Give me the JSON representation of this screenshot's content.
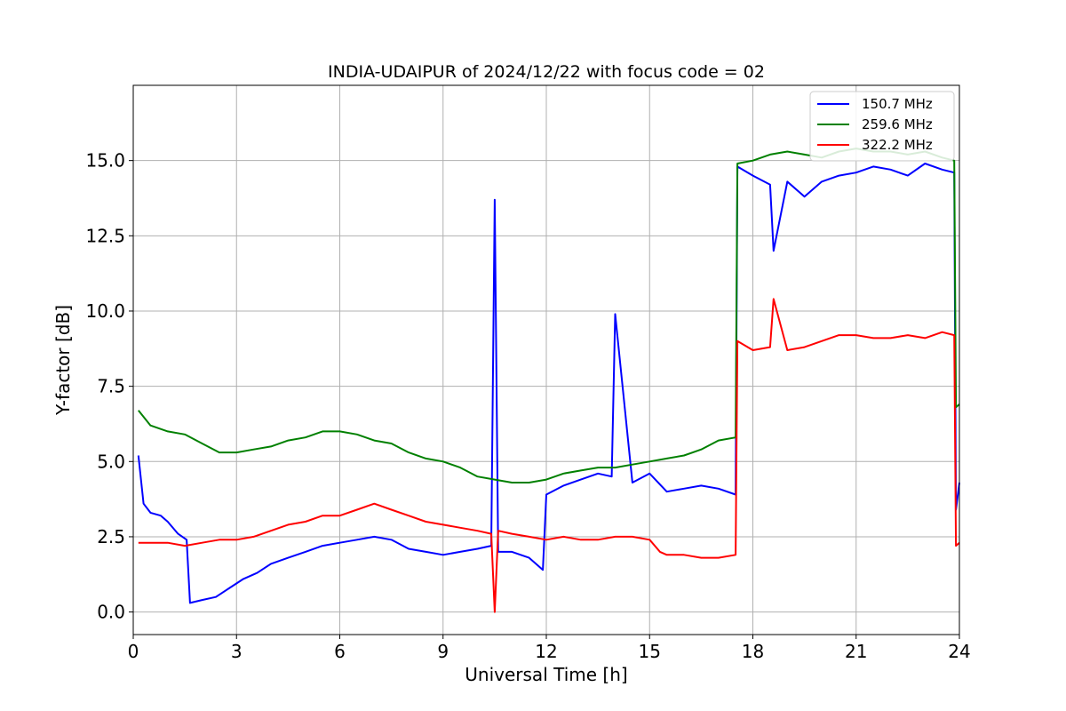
{
  "chart_data": {
    "type": "line",
    "title": "INDIA-UDAIPUR of 2024/12/22 with focus code = 02",
    "xlabel": "Universal Time [h]",
    "ylabel": "Y-factor [dB]",
    "xlim": [
      0,
      24
    ],
    "ylim": [
      -0.75,
      17.5
    ],
    "xticks": [
      0,
      3,
      6,
      9,
      12,
      15,
      18,
      21,
      24
    ],
    "xtick_labels": [
      "0",
      "3",
      "6",
      "9",
      "12",
      "15",
      "18",
      "21",
      "24"
    ],
    "yticks": [
      0.0,
      2.5,
      5.0,
      7.5,
      10.0,
      12.5,
      15.0
    ],
    "ytick_labels": [
      "0.0",
      "2.5",
      "5.0",
      "7.5",
      "10.0",
      "12.5",
      "15.0"
    ],
    "grid": true,
    "legend_position": "top-right",
    "series": [
      {
        "name": "150.7 MHz",
        "color": "#0000ff",
        "x": [
          0.15,
          0.3,
          0.5,
          0.8,
          1.0,
          1.3,
          1.55,
          1.65,
          2.0,
          2.4,
          2.8,
          3.2,
          3.6,
          4.0,
          4.5,
          5.0,
          5.5,
          6.0,
          6.5,
          7.0,
          7.5,
          8.0,
          8.5,
          9.0,
          9.5,
          10.0,
          10.4,
          10.5,
          10.6,
          11.0,
          11.5,
          11.9,
          12.0,
          12.5,
          13.0,
          13.5,
          13.9,
          14.0,
          14.5,
          15.0,
          15.5,
          16.0,
          16.5,
          17.0,
          17.5,
          17.55,
          18.0,
          18.5,
          18.6,
          19.0,
          19.5,
          20.0,
          20.5,
          21.0,
          21.5,
          22.0,
          22.5,
          23.0,
          23.5,
          23.85,
          23.9,
          24.0
        ],
        "y": [
          5.2,
          3.6,
          3.3,
          3.2,
          3.0,
          2.6,
          2.4,
          0.3,
          0.4,
          0.5,
          0.8,
          1.1,
          1.3,
          1.6,
          1.8,
          2.0,
          2.2,
          2.3,
          2.4,
          2.5,
          2.4,
          2.1,
          2.0,
          1.9,
          2.0,
          2.1,
          2.2,
          13.7,
          2.0,
          2.0,
          1.8,
          1.4,
          3.9,
          4.2,
          4.4,
          4.6,
          4.5,
          9.9,
          4.3,
          4.6,
          4.0,
          4.1,
          4.2,
          4.1,
          3.9,
          14.8,
          14.5,
          14.2,
          12.0,
          14.3,
          13.8,
          14.3,
          14.5,
          14.6,
          14.8,
          14.7,
          14.5,
          14.9,
          14.7,
          14.6,
          3.4,
          4.3
        ]
      },
      {
        "name": "259.6 MHz",
        "color": "#008000",
        "x": [
          0.15,
          0.5,
          1.0,
          1.5,
          2.0,
          2.5,
          3.0,
          3.5,
          4.0,
          4.5,
          5.0,
          5.5,
          6.0,
          6.5,
          7.0,
          7.5,
          8.0,
          8.5,
          9.0,
          9.5,
          10.0,
          10.5,
          11.0,
          11.5,
          12.0,
          12.5,
          13.0,
          13.5,
          14.0,
          14.5,
          15.0,
          15.5,
          16.0,
          16.5,
          17.0,
          17.5,
          17.55,
          18.0,
          18.5,
          19.0,
          19.5,
          20.0,
          20.5,
          21.0,
          21.5,
          22.0,
          22.5,
          23.0,
          23.5,
          23.85,
          23.9,
          24.0
        ],
        "y": [
          6.7,
          6.2,
          6.0,
          5.9,
          5.6,
          5.3,
          5.3,
          5.4,
          5.5,
          5.7,
          5.8,
          6.0,
          6.0,
          5.9,
          5.7,
          5.6,
          5.3,
          5.1,
          5.0,
          4.8,
          4.5,
          4.4,
          4.3,
          4.3,
          4.4,
          4.6,
          4.7,
          4.8,
          4.8,
          4.9,
          5.0,
          5.1,
          5.2,
          5.4,
          5.7,
          5.8,
          14.9,
          15.0,
          15.2,
          15.3,
          15.2,
          15.1,
          15.3,
          15.4,
          15.3,
          15.3,
          15.2,
          15.3,
          15.1,
          15.0,
          6.8,
          6.9
        ]
      },
      {
        "name": "322.2 MHz",
        "color": "#ff0000",
        "x": [
          0.15,
          0.5,
          1.0,
          1.5,
          2.0,
          2.5,
          3.0,
          3.5,
          4.0,
          4.5,
          5.0,
          5.5,
          6.0,
          6.5,
          7.0,
          7.5,
          8.0,
          8.5,
          9.0,
          9.5,
          10.0,
          10.4,
          10.5,
          10.6,
          11.0,
          11.5,
          12.0,
          12.5,
          13.0,
          13.5,
          14.0,
          14.5,
          15.0,
          15.3,
          15.5,
          16.0,
          16.5,
          17.0,
          17.5,
          17.55,
          18.0,
          18.5,
          18.6,
          19.0,
          19.5,
          20.0,
          20.5,
          21.0,
          21.5,
          22.0,
          22.5,
          23.0,
          23.5,
          23.85,
          23.9,
          24.0
        ],
        "y": [
          2.3,
          2.3,
          2.3,
          2.2,
          2.3,
          2.4,
          2.4,
          2.5,
          2.7,
          2.9,
          3.0,
          3.2,
          3.2,
          3.4,
          3.6,
          3.4,
          3.2,
          3.0,
          2.9,
          2.8,
          2.7,
          2.6,
          0.0,
          2.7,
          2.6,
          2.5,
          2.4,
          2.5,
          2.4,
          2.4,
          2.5,
          2.5,
          2.4,
          2.0,
          1.9,
          1.9,
          1.8,
          1.8,
          1.9,
          9.0,
          8.7,
          8.8,
          10.4,
          8.7,
          8.8,
          9.0,
          9.2,
          9.2,
          9.1,
          9.1,
          9.2,
          9.1,
          9.3,
          9.2,
          2.2,
          2.3
        ]
      }
    ]
  }
}
